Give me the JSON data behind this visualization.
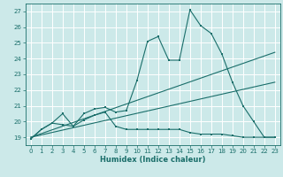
{
  "xlabel": "Humidex (Indice chaleur)",
  "xlim": [
    -0.5,
    23.5
  ],
  "ylim": [
    18.5,
    27.5
  ],
  "xticks": [
    0,
    1,
    2,
    3,
    4,
    5,
    6,
    7,
    8,
    9,
    10,
    11,
    12,
    13,
    14,
    15,
    16,
    17,
    18,
    19,
    20,
    21,
    22,
    23
  ],
  "yticks": [
    19,
    20,
    21,
    22,
    23,
    24,
    25,
    26,
    27
  ],
  "bg_color": "#cce9e9",
  "grid_color": "#ffffff",
  "line_color": "#1a6e6a",
  "series_high": {
    "x": [
      0,
      1,
      2,
      3,
      4,
      5,
      6,
      7,
      8,
      9,
      10,
      11,
      12,
      13,
      14,
      15,
      16,
      17,
      18,
      19,
      20,
      21,
      22,
      23
    ],
    "y": [
      18.9,
      19.5,
      19.9,
      20.5,
      19.7,
      20.5,
      20.8,
      20.9,
      20.6,
      20.7,
      22.6,
      25.1,
      25.4,
      23.9,
      23.9,
      27.1,
      26.1,
      25.6,
      24.3,
      22.5,
      21.0,
      20.0,
      19.0,
      19.0
    ]
  },
  "series_low": {
    "x": [
      0,
      1,
      2,
      3,
      4,
      5,
      6,
      7,
      8,
      9,
      10,
      11,
      12,
      13,
      14,
      15,
      16,
      17,
      18,
      19,
      20,
      21,
      22,
      23
    ],
    "y": [
      18.9,
      19.5,
      19.9,
      19.8,
      19.7,
      20.1,
      20.4,
      20.6,
      19.7,
      19.5,
      19.5,
      19.5,
      19.5,
      19.5,
      19.5,
      19.3,
      19.2,
      19.2,
      19.2,
      19.1,
      19.0,
      19.0,
      19.0,
      19.0
    ]
  },
  "trend1": {
    "x": [
      0,
      23
    ],
    "y": [
      19.0,
      24.4
    ]
  },
  "trend2": {
    "x": [
      0,
      23
    ],
    "y": [
      19.0,
      22.5
    ]
  }
}
